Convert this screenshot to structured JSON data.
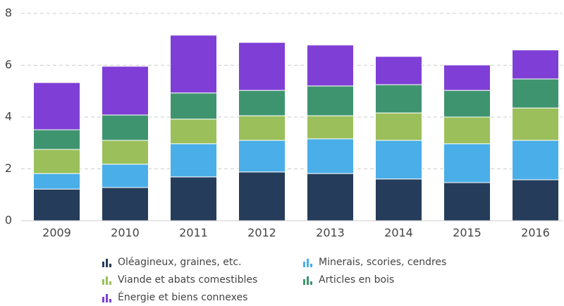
{
  "chart_data": {
    "type": "stacked_bar",
    "categories": [
      "2009",
      "2010",
      "2011",
      "2012",
      "2013",
      "2014",
      "2015",
      "2016"
    ],
    "series": [
      {
        "name": "Oléagineux, graines, etc.",
        "color": "#253d5b",
        "values": [
          1.22,
          1.28,
          1.69,
          1.88,
          1.82,
          1.61,
          1.47,
          1.58
        ]
      },
      {
        "name": "Minerais, scories, cendres",
        "color": "#4aaee8",
        "values": [
          0.6,
          0.9,
          1.28,
          1.22,
          1.34,
          1.49,
          1.5,
          1.52
        ]
      },
      {
        "name": "Viande et abats comestibles",
        "color": "#9bbf5a",
        "values": [
          0.93,
          0.92,
          0.95,
          0.95,
          0.89,
          1.06,
          1.03,
          1.25
        ]
      },
      {
        "name": "Articles en bois",
        "color": "#3f9470",
        "values": [
          0.76,
          0.98,
          1.01,
          0.98,
          1.15,
          1.09,
          1.03,
          1.12
        ]
      },
      {
        "name": "Énergie et biens connexes",
        "color": "#7f3fd6",
        "values": [
          1.82,
          1.88,
          2.23,
          1.85,
          1.58,
          1.09,
          0.98,
          1.12
        ]
      }
    ],
    "ylim": [
      0,
      8
    ],
    "yticks": [
      0,
      2,
      4,
      6,
      8
    ],
    "grid": true,
    "legend": "bottom"
  }
}
